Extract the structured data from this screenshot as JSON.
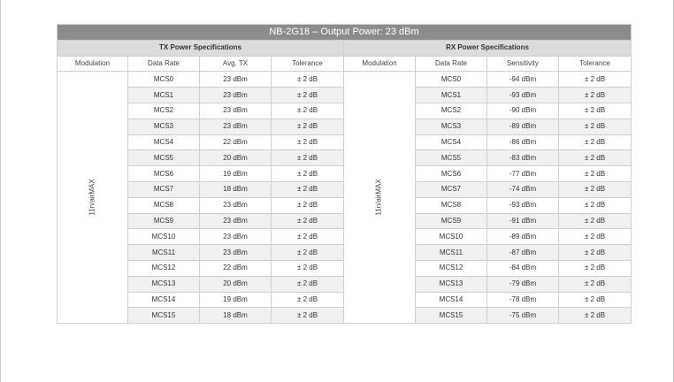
{
  "title": "NB-2G18 – Output Power: 23 dBm",
  "tx": {
    "heading": "TX Power Specifications",
    "columns": [
      "Modulation",
      "Data Rate",
      "Avg. TX",
      "Tolerance"
    ],
    "modulation": "11n/airMAX",
    "rows": [
      [
        "MCS0",
        "23 dBm",
        "± 2 dB"
      ],
      [
        "MCS1",
        "23 dBm",
        "± 2 dB"
      ],
      [
        "MCS2",
        "23 dBm",
        "± 2 dB"
      ],
      [
        "MCS3",
        "23 dBm",
        "± 2 dB"
      ],
      [
        "MCS4",
        "22 dBm",
        "± 2 dB"
      ],
      [
        "MCS5",
        "20 dBm",
        "± 2 dB"
      ],
      [
        "MCS6",
        "19 dBm",
        "± 2 dB"
      ],
      [
        "MCS7",
        "18 dBm",
        "± 2 dB"
      ],
      [
        "MCS8",
        "23 dBm",
        "± 2 dB"
      ],
      [
        "MCS9",
        "23 dBm",
        "± 2 dB"
      ],
      [
        "MCS10",
        "23 dBm",
        "± 2 dB"
      ],
      [
        "MCS11",
        "23 dBm",
        "± 2 dB"
      ],
      [
        "MCS12",
        "22 dBm",
        "± 2 dB"
      ],
      [
        "MCS13",
        "20 dBm",
        "± 2 dB"
      ],
      [
        "MCS14",
        "19 dBm",
        "± 2 dB"
      ],
      [
        "MCS15",
        "18 dBm",
        "± 2 dB"
      ]
    ]
  },
  "rx": {
    "heading": "RX Power Specifications",
    "columns": [
      "Modulation",
      "Data Rate",
      "Sensitivity",
      "Tolerance"
    ],
    "modulation": "11n/airMAX",
    "rows": [
      [
        "MCS0",
        "-94 dBm",
        "± 2 dB"
      ],
      [
        "MCS1",
        "-93 dBm",
        "± 2 dB"
      ],
      [
        "MCS2",
        "-90 dBm",
        "± 2 dB"
      ],
      [
        "MCS3",
        "-89 dBm",
        "± 2 dB"
      ],
      [
        "MCS4",
        "-86 dBm",
        "± 2 dB"
      ],
      [
        "MCS5",
        "-83 dBm",
        "± 2 dB"
      ],
      [
        "MCS6",
        "-77 dBm",
        "± 2 dB"
      ],
      [
        "MCS7",
        "-74 dBm",
        "± 2 dB"
      ],
      [
        "MCS8",
        "-93 dBm",
        "± 2 dB"
      ],
      [
        "MCS9",
        "-91 dBm",
        "± 2 dB"
      ],
      [
        "MCS10",
        "-89 dBm",
        "± 2 dB"
      ],
      [
        "MCS11",
        "-87 dBm",
        "± 2 dB"
      ],
      [
        "MCS12",
        "-84 dBm",
        "± 2 dB"
      ],
      [
        "MCS13",
        "-79 dBm",
        "± 2 dB"
      ],
      [
        "MCS14",
        "-78 dBm",
        "± 2 dB"
      ],
      [
        "MCS15",
        "-75 dBm",
        "± 2 dB"
      ]
    ]
  },
  "colors": {
    "title_bar": "#8c8c8c",
    "group_header": "#dcdcdc",
    "alt_row": "#f0f0f0",
    "grid": "#cfcfcf"
  }
}
